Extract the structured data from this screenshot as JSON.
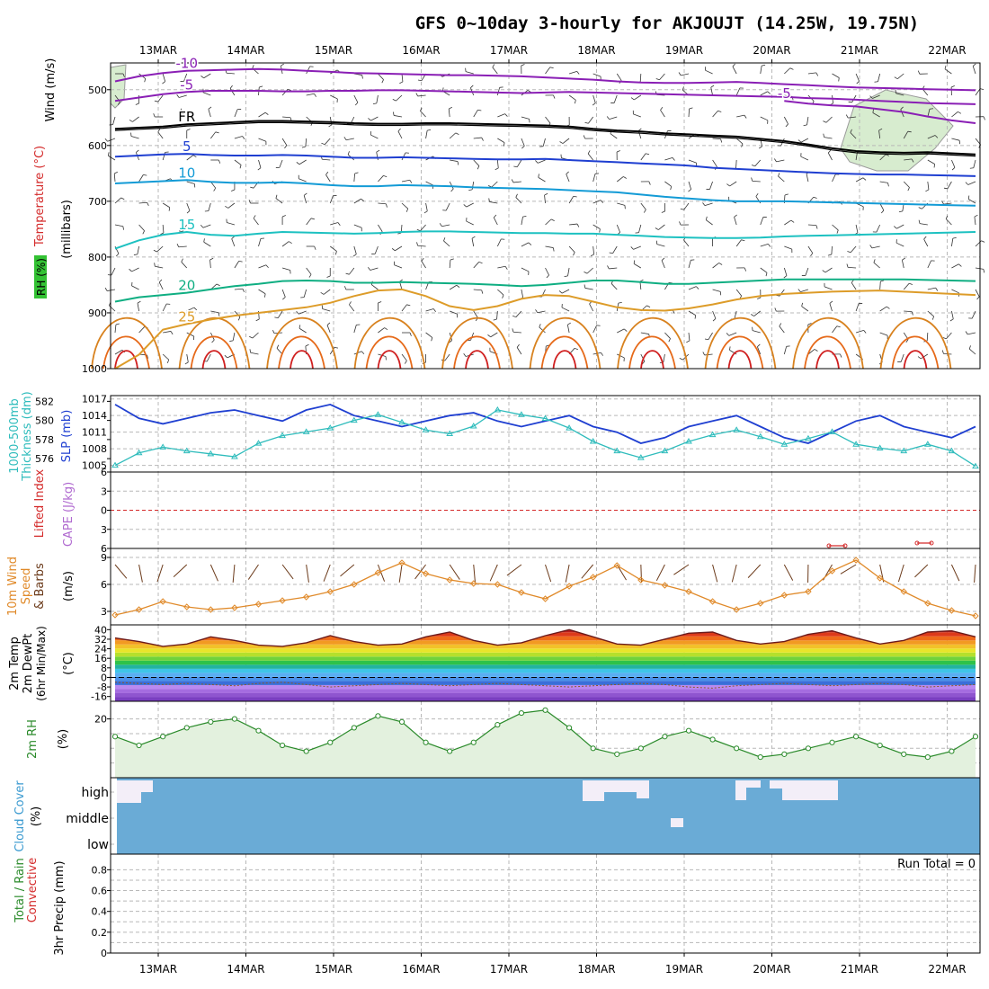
{
  "chart_data": {
    "title": "GFS 0~10day 3-hourly for AKJOUJT (14.25W, 19.75N)",
    "dates": [
      "13MAR",
      "14MAR",
      "15MAR",
      "16MAR",
      "17MAR",
      "18MAR",
      "19MAR",
      "20MAR",
      "21MAR",
      "22MAR"
    ],
    "panels": [
      {
        "id": "upper-air",
        "type": "contour",
        "labels": [
          "Wind (m/s)",
          "Temperature (°C)",
          "RH (%)",
          "(millibars)"
        ],
        "yticks": [
          500,
          600,
          700,
          800,
          900,
          1000
        ],
        "ylim": [
          1000,
          450
        ],
        "series": [
          {
            "name": "-10",
            "color": "#8a1fb5",
            "values": [
              485,
              476,
              470,
              466,
              465,
              464,
              463,
              464,
              466,
              468,
              470,
              471,
              472,
              473,
              474,
              474,
              475,
              476,
              478,
              480,
              482,
              485,
              487,
              488,
              488,
              487,
              486,
              488,
              490,
              492,
              494,
              496,
              497,
              498,
              499,
              500,
              501
            ]
          },
          {
            "name": "-5",
            "color": "#8a1fb5",
            "values": [
              520,
              514,
              508,
              504,
              502,
              502,
              502,
              503,
              503,
              502,
              502,
              501,
              501,
              502,
              503,
              504,
              505,
              506,
              505,
              504,
              505,
              506,
              507,
              508,
              509,
              510,
              511,
              512,
              513,
              515,
              516,
              518,
              520,
              522,
              524,
              525,
              526
            ]
          },
          {
            "name": "-5 (late)",
            "color": "#8a1fb5",
            "values": [
              null,
              null,
              null,
              null,
              null,
              null,
              null,
              null,
              null,
              null,
              null,
              null,
              null,
              null,
              null,
              null,
              null,
              null,
              null,
              null,
              null,
              null,
              null,
              null,
              null,
              null,
              null,
              null,
              520,
              525,
              528,
              530,
              535,
              540,
              548,
              555,
              560
            ]
          },
          {
            "name": "FR",
            "color": "#000000",
            "values": [
              570,
              568,
              566,
              562,
              560,
              558,
              556,
              556,
              557,
              558,
              560,
              561,
              561,
              560,
              560,
              561,
              562,
              563,
              564,
              566,
              570,
              573,
              575,
              578,
              580,
              582,
              584,
              588,
              592,
              598,
              605,
              610,
              612,
              613,
              612,
              614,
              616
            ]
          },
          {
            "name": "5",
            "color": "#1f3fd1",
            "values": [
              620,
              618,
              616,
              615,
              617,
              618,
              618,
              617,
              618,
              620,
              622,
              622,
              621,
              622,
              623,
              624,
              625,
              625,
              624,
              626,
              628,
              630,
              632,
              634,
              636,
              640,
              642,
              644,
              646,
              648,
              650,
              651,
              652,
              652,
              653,
              654,
              655
            ]
          },
          {
            "name": "10",
            "color": "#139bd6",
            "values": [
              668,
              666,
              664,
              662,
              665,
              667,
              667,
              666,
              668,
              671,
              673,
              673,
              671,
              672,
              673,
              675,
              676,
              677,
              678,
              680,
              682,
              684,
              688,
              692,
              695,
              698,
              700,
              700,
              700,
              701,
              702,
              703,
              704,
              705,
              706,
              707,
              708
            ]
          },
          {
            "name": "15",
            "color": "#1dc1c1",
            "values": [
              785,
              770,
              760,
              755,
              760,
              762,
              758,
              755,
              756,
              757,
              758,
              757,
              755,
              754,
              754,
              755,
              756,
              757,
              757,
              758,
              758,
              760,
              762,
              764,
              765,
              766,
              766,
              765,
              763,
              762,
              761,
              760,
              759,
              758,
              757,
              756,
              755
            ]
          },
          {
            "name": "20",
            "color": "#0fae82",
            "values": [
              880,
              872,
              868,
              864,
              858,
              852,
              848,
              843,
              842,
              843,
              846,
              846,
              845,
              846,
              847,
              848,
              850,
              852,
              850,
              846,
              842,
              842,
              845,
              848,
              848,
              846,
              844,
              842,
              840,
              840,
              840,
              840,
              840,
              840,
              841,
              842,
              843
            ]
          },
          {
            "name": "25",
            "color": "#dd9c29",
            "values": [
              1000,
              975,
              930,
              920,
              912,
              905,
              900,
              895,
              890,
              882,
              870,
              860,
              858,
              870,
              888,
              895,
              888,
              875,
              868,
              870,
              880,
              890,
              895,
              896,
              892,
              885,
              876,
              870,
              866,
              864,
              862,
              861,
              860,
              862,
              864,
              866,
              868
            ]
          }
        ]
      },
      {
        "id": "slp-thickness",
        "type": "line",
        "labels": [
          "1000-500mb",
          "Thickness (dm)",
          "SLP (mb)"
        ],
        "yticks_left": [
          576,
          578,
          580,
          582
        ],
        "yticks_right": [
          1005,
          1008,
          1011,
          1014,
          1017
        ],
        "series": [
          {
            "name": "SLP",
            "color": "#1f3fd1",
            "values": [
              1016,
              1013.5,
              1012.5,
              1013.5,
              1014.5,
              1015,
              1014,
              1013,
              1015,
              1016,
              1014,
              1013,
              1012,
              1013,
              1014,
              1014.5,
              1013,
              1012,
              1013,
              1014,
              1012,
              1011,
              1009,
              1010,
              1012,
              1013,
              1014,
              1012,
              1010,
              1009,
              1011,
              1013,
              1014,
              1012,
              1011,
              1010,
              1012
            ]
          },
          {
            "name": "Thickness",
            "color": "#2fbcbc",
            "values": [
              575.3,
              576.6,
              577.2,
              576.8,
              576.5,
              576.2,
              577.6,
              578.4,
              578.8,
              579.2,
              580,
              580.6,
              579.8,
              579,
              578.6,
              579.4,
              581.1,
              580.6,
              580.2,
              579.2,
              577.8,
              576.8,
              576.1,
              576.8,
              577.8,
              578.5,
              579,
              578.3,
              577.5,
              578.1,
              578.8,
              577.5,
              577.1,
              576.8,
              577.5,
              576.8,
              575.2
            ]
          }
        ]
      },
      {
        "id": "cape-li",
        "type": "line",
        "labels": [
          "Lifted Index",
          "CAPE (J/kg)"
        ],
        "yticks": [
          -6,
          -3,
          0,
          3,
          6
        ],
        "zero_line": 0,
        "series": [
          {
            "name": "Lifted Index",
            "color": "#d42a2a",
            "values": [
              null,
              null,
              null,
              null,
              null,
              null,
              null,
              null,
              null,
              null,
              null,
              null,
              null,
              null,
              null,
              null,
              null,
              null,
              null,
              null,
              null,
              null,
              null,
              null,
              null,
              null,
              null,
              null,
              null,
              null,
              5.7,
              5.7,
              null,
              null,
              null,
              null,
              null
            ]
          }
        ]
      },
      {
        "id": "wind10m",
        "type": "line",
        "labels": [
          "10m Wind",
          "Speed",
          "& Barbs",
          "(m/s)"
        ],
        "yticks": [
          3,
          6,
          9
        ],
        "ylim": [
          1.5,
          10
        ],
        "series": [
          {
            "name": "10m Wind Speed",
            "color": "#e08a2a",
            "values": [
              2.6,
              3.2,
              4.1,
              3.5,
              3.2,
              3.4,
              3.8,
              4.2,
              4.6,
              5.2,
              6,
              7.3,
              8.4,
              7.2,
              6.5,
              6.1,
              6,
              5.1,
              4.4,
              5.8,
              6.8,
              8.1,
              6.5,
              5.9,
              5.2,
              4.1,
              3.2,
              3.9,
              4.8,
              5.2,
              7.5,
              8.7,
              6.7,
              5.2,
              3.9,
              3.1,
              2.5
            ]
          }
        ]
      },
      {
        "id": "temp2m",
        "type": "area",
        "labels": [
          "2m Temp",
          "2m DewPt",
          "(6hr Min/Max)",
          "(°C)"
        ],
        "yticks": [
          -16,
          -8,
          0,
          8,
          16,
          24,
          32,
          40
        ],
        "series": [
          {
            "name": "2m Temp",
            "color": "#6b1a1a",
            "values": [
              33,
              30,
              26,
              28,
              34,
              31,
              27,
              26,
              29,
              35,
              30,
              27,
              28,
              34,
              38,
              31,
              27,
              29,
              35,
              40,
              34,
              28,
              27,
              32,
              37,
              38,
              31,
              28,
              30,
              36,
              39,
              33,
              28,
              31,
              38,
              39,
              34
            ]
          },
          {
            "name": "2m DewPt",
            "color": "#8a5a2a",
            "values": [
              -4,
              -5,
              -6,
              -5,
              -6,
              -7,
              -5,
              -4,
              -6,
              -8,
              -7,
              -6,
              -5,
              -6,
              -7,
              -6,
              -5,
              -6,
              -7,
              -8,
              -7,
              -6,
              -5,
              -6,
              -8,
              -9,
              -7,
              -6,
              -5,
              -6,
              -7,
              -6,
              -5,
              -6,
              -8,
              -7,
              -6
            ]
          }
        ]
      },
      {
        "id": "rh2m",
        "type": "area",
        "labels": [
          "2m RH",
          "(%)"
        ],
        "yticks": [
          20
        ],
        "ylim": [
          0,
          26
        ],
        "series": [
          {
            "name": "2m RH",
            "color": "#2a8a2a",
            "values": [
              14,
              11,
              14,
              17,
              19,
              20,
              16,
              11,
              9,
              12,
              17,
              21,
              19,
              12,
              9,
              12,
              18,
              22,
              23,
              17,
              10,
              8,
              10,
              14,
              16,
              13,
              10,
              7,
              8,
              10,
              12,
              14,
              11,
              8,
              7,
              9,
              14
            ]
          }
        ]
      },
      {
        "id": "cloud",
        "type": "heatmap",
        "labels": [
          "Cloud Cover",
          "(%)"
        ],
        "yticks": [
          "high",
          "middle",
          "low"
        ]
      },
      {
        "id": "precip",
        "type": "bar",
        "labels": [
          "Total / Rain",
          "Convective",
          "3hr Precip (mm)"
        ],
        "yticks": [
          0,
          0.2,
          0.4,
          0.6,
          0.8
        ],
        "ylim": [
          0,
          0.95
        ],
        "annotation": "Run Total = 0",
        "series": [
          {
            "name": "3hr Precip",
            "values": [
              0,
              0,
              0,
              0,
              0,
              0,
              0,
              0,
              0,
              0,
              0,
              0,
              0,
              0,
              0,
              0,
              0,
              0,
              0,
              0,
              0,
              0,
              0,
              0,
              0,
              0,
              0,
              0,
              0,
              0,
              0,
              0,
              0,
              0,
              0,
              0,
              0
            ]
          }
        ]
      }
    ]
  }
}
